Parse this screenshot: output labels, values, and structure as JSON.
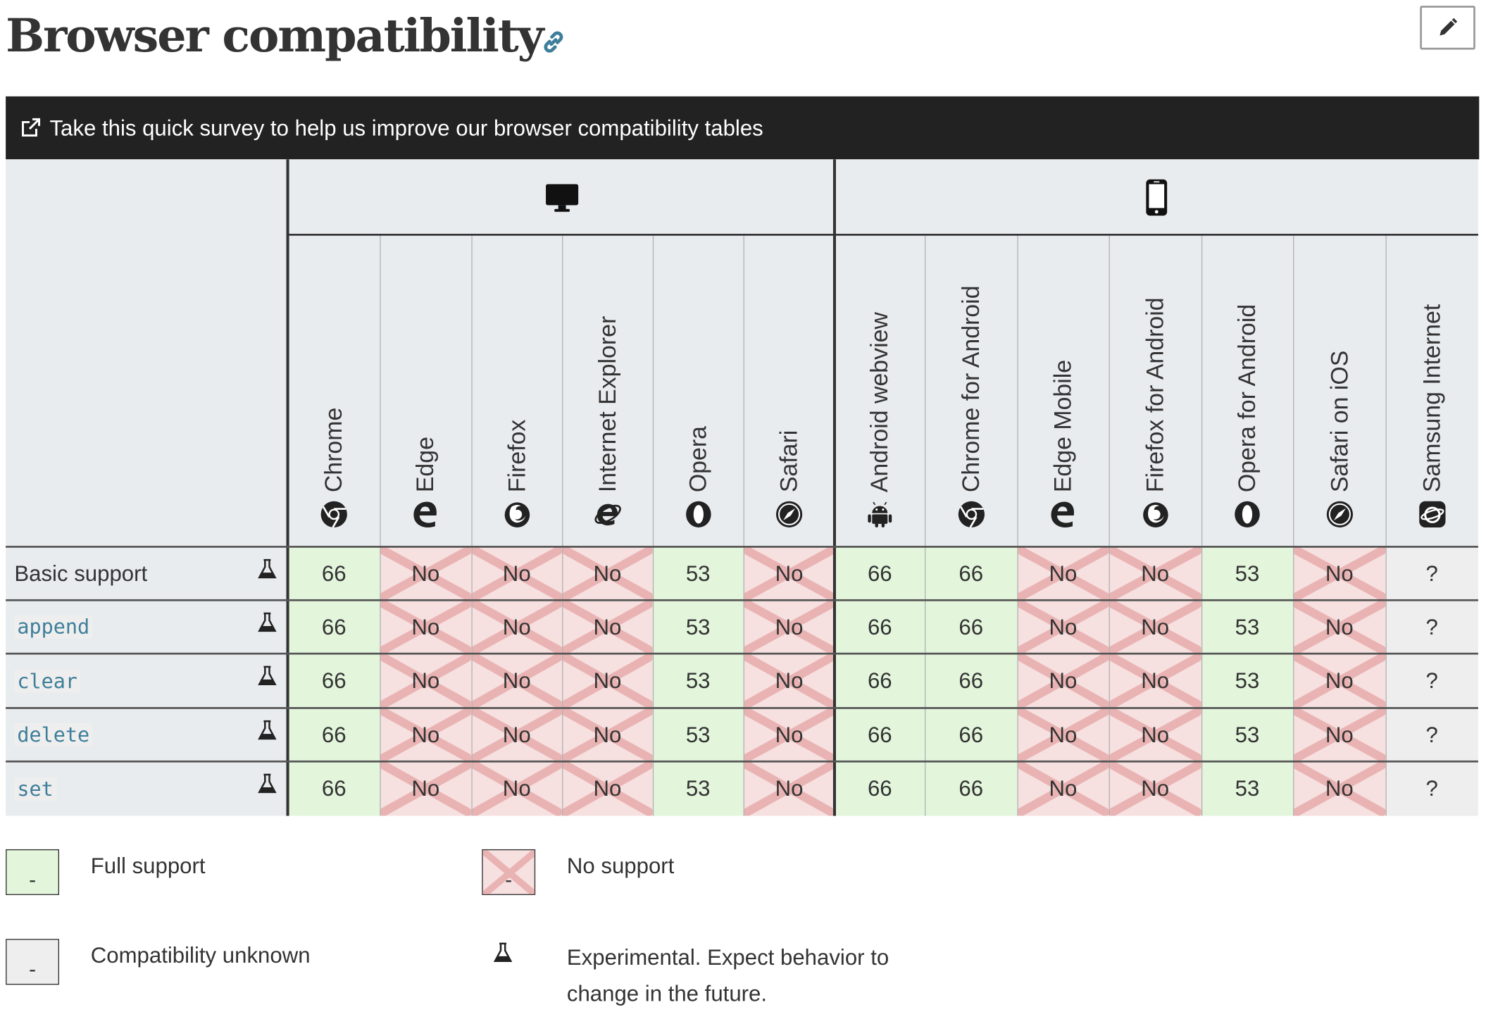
{
  "page_title": "Browser compatibility",
  "survey_text": "Take this quick survey to help us improve our browser compatibility tables",
  "platforms": [
    {
      "name": "desktop",
      "icon": "desktop-icon"
    },
    {
      "name": "mobile",
      "icon": "mobile-icon"
    }
  ],
  "browsers": [
    {
      "name": "Chrome",
      "icon": "chrome-icon"
    },
    {
      "name": "Edge",
      "icon": "edge-icon"
    },
    {
      "name": "Firefox",
      "icon": "firefox-icon"
    },
    {
      "name": "Internet Explorer",
      "icon": "internet-explorer-icon"
    },
    {
      "name": "Opera",
      "icon": "opera-icon"
    },
    {
      "name": "Safari",
      "icon": "safari-icon"
    },
    {
      "name": "Android webview",
      "icon": "android-icon"
    },
    {
      "name": "Chrome for Android",
      "icon": "chrome-icon"
    },
    {
      "name": "Edge Mobile",
      "icon": "edge-icon"
    },
    {
      "name": "Firefox for Android",
      "icon": "firefox-icon"
    },
    {
      "name": "Opera for Android",
      "icon": "opera-icon"
    },
    {
      "name": "Safari on iOS",
      "icon": "safari-icon"
    },
    {
      "name": "Samsung Internet",
      "icon": "samsung-internet-icon"
    }
  ],
  "features": [
    {
      "label": "Basic support",
      "code": false,
      "experimental": true,
      "support": [
        "66",
        "No",
        "No",
        "No",
        "53",
        "No",
        "66",
        "66",
        "No",
        "No",
        "53",
        "No",
        "?"
      ]
    },
    {
      "label": "append",
      "code": true,
      "experimental": true,
      "support": [
        "66",
        "No",
        "No",
        "No",
        "53",
        "No",
        "66",
        "66",
        "No",
        "No",
        "53",
        "No",
        "?"
      ]
    },
    {
      "label": "clear",
      "code": true,
      "experimental": true,
      "support": [
        "66",
        "No",
        "No",
        "No",
        "53",
        "No",
        "66",
        "66",
        "No",
        "No",
        "53",
        "No",
        "?"
      ]
    },
    {
      "label": "delete",
      "code": true,
      "experimental": true,
      "support": [
        "66",
        "No",
        "No",
        "No",
        "53",
        "No",
        "66",
        "66",
        "No",
        "No",
        "53",
        "No",
        "?"
      ]
    },
    {
      "label": "set",
      "code": true,
      "experimental": true,
      "support": [
        "66",
        "No",
        "No",
        "No",
        "53",
        "No",
        "66",
        "66",
        "No",
        "No",
        "53",
        "No",
        "?"
      ]
    }
  ],
  "legend": [
    {
      "type": "yes",
      "box_text": "-",
      "label": "Full support"
    },
    {
      "type": "no",
      "box_text": "-",
      "label": "No support"
    },
    {
      "type": "unknown",
      "box_text": "-",
      "label": "Compatibility unknown"
    },
    {
      "type": "experimental",
      "label_lines": [
        "Experimental. Expect behavior to",
        "change in the future."
      ]
    }
  ],
  "colors": {
    "full_support": "#e3f6dc",
    "no_support": "#f6e0e0",
    "unknown": "#eeeeee",
    "header_bg": "#e9ecef",
    "survey_bg": "#222222",
    "code": "#3d7e9a"
  }
}
